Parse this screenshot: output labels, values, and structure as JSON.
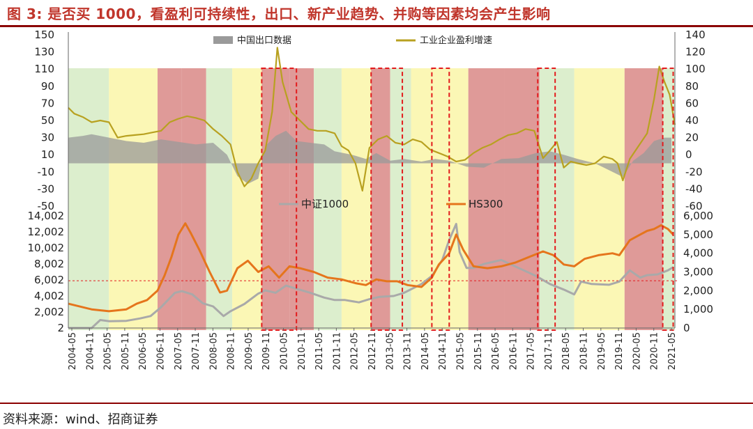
{
  "figure": {
    "title": "图 3: 是否买 1000，看盈利可持续性，出口、新产业趋势、并购等因素均会产生影响",
    "source": "资料来源：wind、招商证券"
  },
  "colors": {
    "title_red": "#c0352b",
    "rule_dark_red": "#8b0000",
    "region_green": "#d8ecc8",
    "region_yellow": "#fbf6ad",
    "region_red": "#d98886",
    "export_area": "#9a9a9a",
    "profit_line": "#b8a120",
    "csi1000_line": "#a9a9a9",
    "hs300_line": "#e5751c",
    "dashed_box": "#e31a1c",
    "ref_line": "#e31a1c"
  },
  "chart_data": [
    {
      "type": "area",
      "panel": "top",
      "series": [
        {
          "name": "中国出口数据",
          "axis": "left",
          "t": [
            2004.33,
            2004.75,
            2005.0,
            2005.5,
            2006.0,
            2006.5,
            2007.0,
            2007.5,
            2008.0,
            2008.5,
            2008.9,
            2009.2,
            2009.5,
            2009.8,
            2010.0,
            2010.3,
            2010.6,
            2010.9,
            2011.3,
            2011.7,
            2012.0,
            2012.5,
            2012.9,
            2013.2,
            2013.6,
            2014.0,
            2014.5,
            2014.9,
            2015.3,
            2015.8,
            2016.3,
            2016.8,
            2017.3,
            2017.8,
            2018.2,
            2018.6,
            2019.0,
            2019.5,
            2020.0,
            2020.3,
            2020.6,
            2020.9,
            2021.2,
            2021.5,
            2021.7
          ],
          "values": [
            30,
            32,
            34,
            30,
            26,
            24,
            28,
            25,
            22,
            24,
            10,
            -15,
            -24,
            -18,
            20,
            32,
            38,
            26,
            24,
            22,
            14,
            10,
            5,
            12,
            3,
            5,
            2,
            5,
            3,
            -4,
            -5,
            5,
            6,
            12,
            14,
            10,
            5,
            0,
            -10,
            -16,
            3,
            12,
            26,
            30,
            30
          ]
        },
        {
          "name": "工业企业盈利增速",
          "axis": "right",
          "t": [
            2004.33,
            2004.5,
            2004.75,
            2005.0,
            2005.25,
            2005.5,
            2005.75,
            2006.0,
            2006.25,
            2006.5,
            2006.75,
            2007.0,
            2007.25,
            2007.5,
            2007.75,
            2008.0,
            2008.25,
            2008.5,
            2008.75,
            2009.0,
            2009.2,
            2009.4,
            2009.6,
            2009.8,
            2010.0,
            2010.2,
            2010.35,
            2010.5,
            2010.75,
            2011.0,
            2011.25,
            2011.5,
            2011.75,
            2012.0,
            2012.2,
            2012.4,
            2012.6,
            2012.8,
            2013.0,
            2013.25,
            2013.5,
            2013.75,
            2014.0,
            2014.25,
            2014.5,
            2014.75,
            2015.0,
            2015.25,
            2015.5,
            2015.75,
            2016.0,
            2016.25,
            2016.5,
            2016.75,
            2017.0,
            2017.25,
            2017.5,
            2017.75,
            2018.0,
            2018.2,
            2018.4,
            2018.6,
            2018.8,
            2019.0,
            2019.25,
            2019.5,
            2019.75,
            2020.0,
            2020.15,
            2020.3,
            2020.5,
            2020.75,
            2021.0,
            2021.2,
            2021.35,
            2021.5,
            2021.65,
            2021.8
          ],
          "values": [
            55,
            48,
            44,
            38,
            40,
            38,
            20,
            22,
            23,
            24,
            26,
            28,
            38,
            42,
            45,
            43,
            40,
            30,
            22,
            12,
            -20,
            -37,
            -28,
            -10,
            5,
            50,
            125,
            85,
            50,
            40,
            30,
            28,
            28,
            25,
            10,
            5,
            -10,
            -42,
            8,
            18,
            22,
            14,
            12,
            18,
            15,
            6,
            2,
            -2,
            -8,
            -6,
            2,
            8,
            12,
            18,
            23,
            25,
            30,
            28,
            -4,
            5,
            15,
            -15,
            -8,
            -10,
            -12,
            -10,
            -2,
            -5,
            -10,
            -30,
            -5,
            10,
            25,
            65,
            103,
            85,
            70,
            35
          ]
        }
      ],
      "ylim_left": [
        -50,
        150
      ],
      "ylim_right": [
        -60,
        140
      ],
      "yticks_left": [
        "150",
        "130",
        "110",
        "90",
        "70",
        "50",
        "30",
        "10",
        "-10",
        "-30",
        "-50"
      ],
      "yticks_right": [
        "140",
        "120",
        "100",
        "80",
        "60",
        "40",
        "20",
        "0",
        "-20",
        "-40",
        "-60"
      ],
      "legend": [
        "中国出口数据",
        "工业企业盈利增速"
      ],
      "legend_placement": "top"
    },
    {
      "type": "line",
      "panel": "bottom",
      "series": [
        {
          "name": "中证1000",
          "axis": "left",
          "t": [
            2004.33,
            2005.0,
            2005.25,
            2005.5,
            2006.0,
            2006.4,
            2006.7,
            2007.0,
            2007.2,
            2007.4,
            2007.6,
            2007.9,
            2008.2,
            2008.5,
            2008.8,
            2009.0,
            2009.4,
            2009.8,
            2010.0,
            2010.3,
            2010.6,
            2010.9,
            2011.3,
            2011.7,
            2012.0,
            2012.3,
            2012.7,
            2013.0,
            2013.3,
            2013.7,
            2014.0,
            2014.5,
            2014.8,
            2015.1,
            2015.3,
            2015.5,
            2015.6,
            2015.8,
            2016.0,
            2016.3,
            2016.8,
            2017.3,
            2017.8,
            2018.2,
            2018.6,
            2018.9,
            2019.1,
            2019.4,
            2019.9,
            2020.2,
            2020.5,
            2020.8,
            2021.0,
            2021.3,
            2021.6,
            2021.75
          ],
          "values": [
            2,
            2,
            1000,
            850,
            900,
            1200,
            1500,
            2600,
            3500,
            4400,
            4600,
            4200,
            3100,
            2700,
            1500,
            2100,
            3000,
            4300,
            4700,
            4400,
            5300,
            4900,
            4400,
            3800,
            3500,
            3500,
            3200,
            3600,
            3900,
            4000,
            4400,
            5500,
            6500,
            8500,
            11000,
            13000,
            9500,
            7500,
            7500,
            8000,
            8500,
            7500,
            6500,
            5500,
            4800,
            4200,
            5800,
            5500,
            5400,
            5800,
            7200,
            6300,
            6600,
            6700,
            7200,
            7600
          ]
        },
        {
          "name": "HS300",
          "axis": "right",
          "t": [
            2004.33,
            2005.0,
            2005.5,
            2006.0,
            2006.3,
            2006.6,
            2006.9,
            2007.1,
            2007.3,
            2007.5,
            2007.7,
            2007.85,
            2008.1,
            2008.4,
            2008.7,
            2008.9,
            2009.2,
            2009.5,
            2009.8,
            2010.1,
            2010.4,
            2010.7,
            2011.0,
            2011.4,
            2011.8,
            2012.2,
            2012.6,
            2012.9,
            2013.2,
            2013.5,
            2013.8,
            2014.1,
            2014.5,
            2014.8,
            2015.0,
            2015.3,
            2015.5,
            2015.7,
            2016.0,
            2016.4,
            2016.8,
            2017.2,
            2017.6,
            2018.0,
            2018.3,
            2018.6,
            2018.9,
            2019.2,
            2019.6,
            2020.0,
            2020.2,
            2020.5,
            2020.8,
            2021.0,
            2021.2,
            2021.4,
            2021.6,
            2021.75
          ],
          "values": [
            1300,
            1000,
            900,
            1000,
            1300,
            1500,
            2000,
            2800,
            3800,
            5000,
            5600,
            5100,
            4200,
            3000,
            1900,
            2000,
            3200,
            3600,
            3000,
            3300,
            2700,
            3300,
            3200,
            3000,
            2700,
            2600,
            2400,
            2300,
            2600,
            2500,
            2500,
            2300,
            2200,
            2700,
            3400,
            4000,
            5000,
            4200,
            3300,
            3200,
            3300,
            3500,
            3800,
            4100,
            3900,
            3400,
            3300,
            3700,
            3900,
            4000,
            3900,
            4700,
            5000,
            5200,
            5300,
            5500,
            5300,
            5000
          ]
        }
      ],
      "ylim_left": [
        2,
        14002
      ],
      "ylim_right": [
        0,
        6000
      ],
      "yticks_left": [
        "14,002",
        "12,002",
        "10,002",
        "8,002",
        "6,002",
        "4,002",
        "2,002",
        "2"
      ],
      "yticks_right": [
        "6,000",
        "5,000",
        "4,000",
        "3,000",
        "2,000",
        "1,000",
        "0"
      ],
      "reference_line_left": 5900,
      "legend": [
        "中证1000",
        "HS300"
      ],
      "legend_placement": "top"
    }
  ],
  "x_axis": {
    "range": [
      2004.33,
      2021.8
    ],
    "tick_labels": [
      "2004-05",
      "2004-11",
      "2005-05",
      "2005-11",
      "2006-05",
      "2006-11",
      "2007-05",
      "2007-11",
      "2008-05",
      "2008-11",
      "2009-05",
      "2009-11",
      "2010-05",
      "2010-11",
      "2011-05",
      "2011-11",
      "2012-05",
      "2012-11",
      "2013-05",
      "2013-11",
      "2014-05",
      "2014-11",
      "2015-05",
      "2015-11",
      "2016-05",
      "2016-11",
      "2017-05",
      "2017-11",
      "2018-05",
      "2018-11",
      "2019-05",
      "2019-11",
      "2020-05",
      "2020-11",
      "2021-05"
    ]
  },
  "regions": [
    {
      "start": 2004.33,
      "end": 2005.5,
      "kind": "green"
    },
    {
      "start": 2005.5,
      "end": 2006.9,
      "kind": "yellow"
    },
    {
      "start": 2006.9,
      "end": 2007.6,
      "kind": "red"
    },
    {
      "start": 2007.6,
      "end": 2008.3,
      "kind": "red"
    },
    {
      "start": 2008.3,
      "end": 2009.05,
      "kind": "green"
    },
    {
      "start": 2009.05,
      "end": 2009.9,
      "kind": "yellow"
    },
    {
      "start": 2009.9,
      "end": 2010.7,
      "kind": "red"
    },
    {
      "start": 2010.7,
      "end": 2011.4,
      "kind": "red"
    },
    {
      "start": 2011.4,
      "end": 2012.2,
      "kind": "green"
    },
    {
      "start": 2012.2,
      "end": 2013.05,
      "kind": "yellow"
    },
    {
      "start": 2013.05,
      "end": 2013.6,
      "kind": "red"
    },
    {
      "start": 2013.6,
      "end": 2014.2,
      "kind": "green"
    },
    {
      "start": 2014.2,
      "end": 2015.85,
      "kind": "yellow"
    },
    {
      "start": 2015.85,
      "end": 2016.9,
      "kind": "red"
    },
    {
      "start": 2016.9,
      "end": 2017.9,
      "kind": "red"
    },
    {
      "start": 2017.9,
      "end": 2018.4,
      "kind": "green"
    },
    {
      "start": 2018.4,
      "end": 2018.9,
      "kind": "green"
    },
    {
      "start": 2018.9,
      "end": 2020.35,
      "kind": "yellow"
    },
    {
      "start": 2020.35,
      "end": 2021.45,
      "kind": "red"
    },
    {
      "start": 2021.45,
      "end": 2021.8,
      "kind": "green"
    }
  ],
  "highlight_boxes": [
    {
      "start": 2009.9,
      "end": 2010.9
    },
    {
      "start": 2013.05,
      "end": 2013.95
    },
    {
      "start": 2014.8,
      "end": 2015.3
    },
    {
      "start": 2017.85,
      "end": 2018.35
    },
    {
      "start": 2021.45,
      "end": 2021.75
    }
  ]
}
